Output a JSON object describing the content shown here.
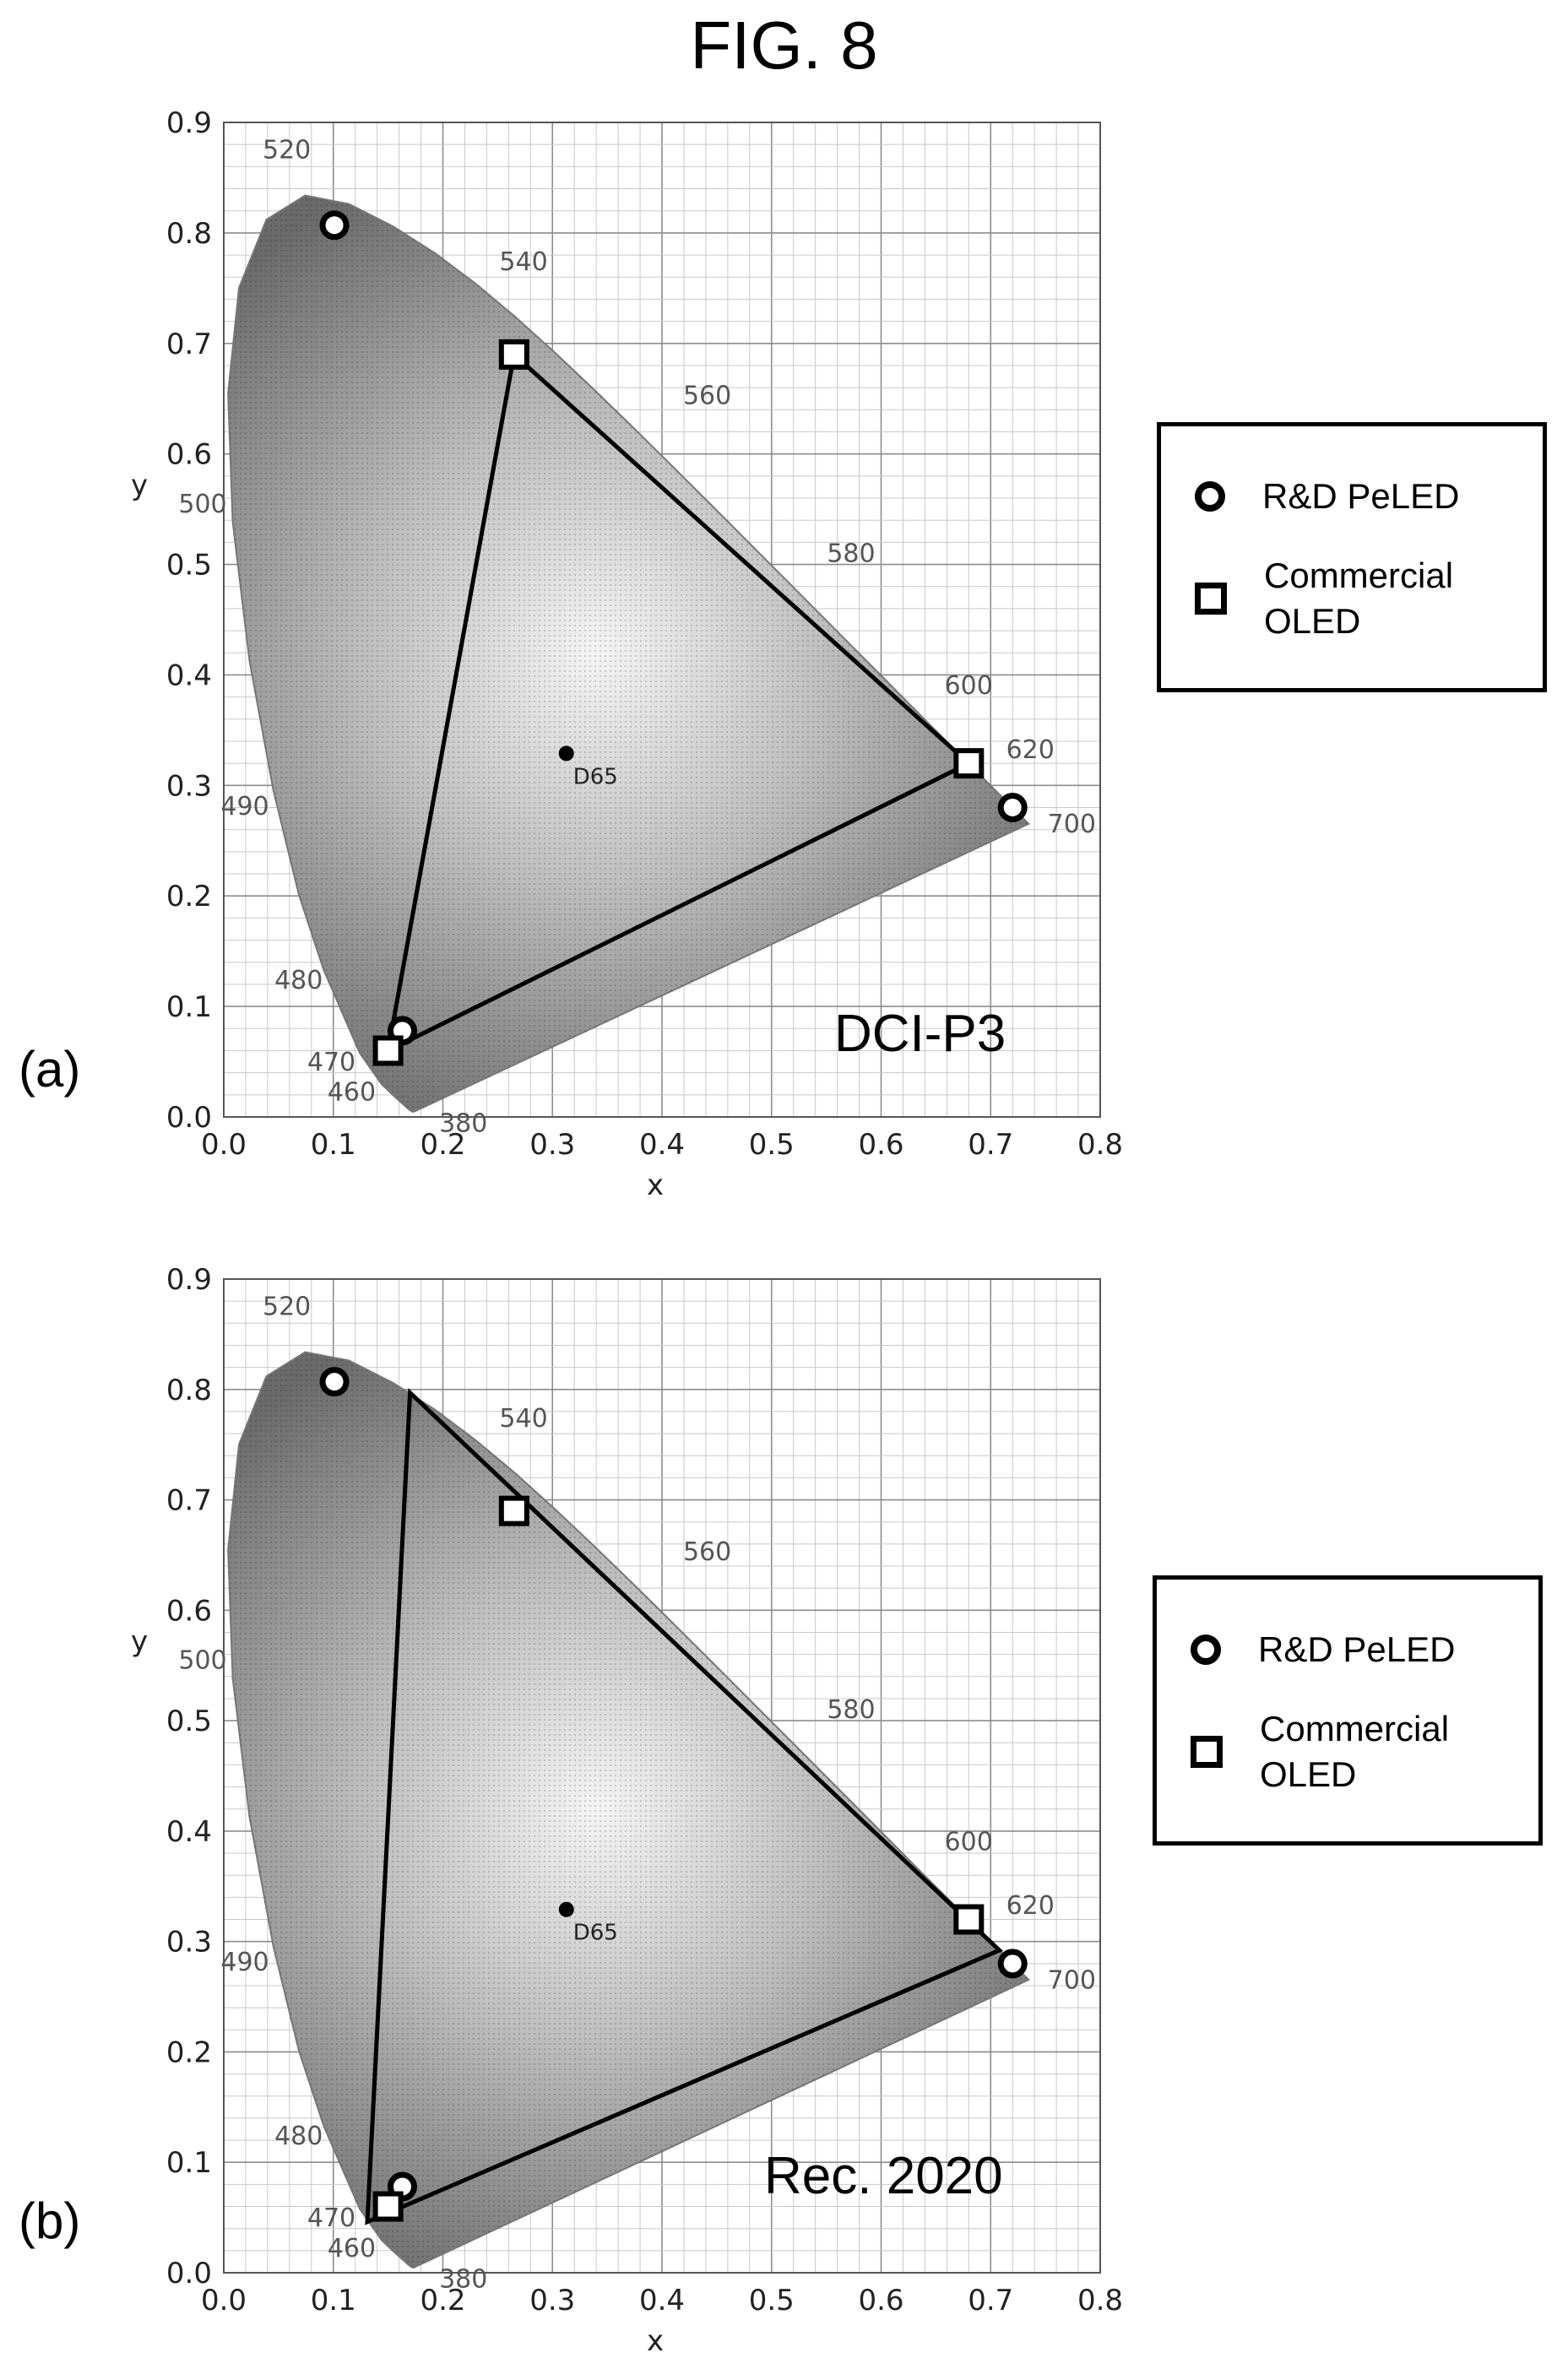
{
  "figure_title": "FIG. 8",
  "legend": {
    "circle_label": "R&D PeLED",
    "square_label_line1": "Commercial",
    "square_label_line2": "OLED"
  },
  "colors": {
    "line": "#000000",
    "grid": "#b0b0b0",
    "marker_fill": "#ffffff"
  },
  "chart_data": [
    {
      "type": "scatter",
      "panel_label": "(a)",
      "gamut_label": "DCI-P3",
      "xlabel": "x",
      "ylabel": "y",
      "xlim": [
        0.0,
        0.8
      ],
      "ylim": [
        0.0,
        0.9
      ],
      "x_ticks": [
        "0.0",
        "0.1",
        "0.2",
        "0.3",
        "0.4",
        "0.5",
        "0.6",
        "0.7",
        "0.8"
      ],
      "y_ticks": [
        "0.0",
        "0.1",
        "0.2",
        "0.3",
        "0.4",
        "0.5",
        "0.6",
        "0.7",
        "0.8",
        "0.9"
      ],
      "grid": true,
      "legend_position": "right",
      "white_point": {
        "label": "D65",
        "x": 0.3127,
        "y": 0.329
      },
      "wavelength_labels": [
        {
          "text": "520",
          "x": 0.074,
          "y": 0.834
        },
        {
          "text": "540",
          "x": 0.23,
          "y": 0.754
        },
        {
          "text": "560",
          "x": 0.373,
          "y": 0.624
        },
        {
          "text": "580",
          "x": 0.512,
          "y": 0.487
        },
        {
          "text": "600",
          "x": 0.627,
          "y": 0.372
        },
        {
          "text": "620",
          "x": 0.691,
          "y": 0.308
        },
        {
          "text": "700",
          "x": 0.735,
          "y": 0.265
        },
        {
          "text": "500",
          "x": 0.008,
          "y": 0.538
        },
        {
          "text": "490",
          "x": 0.045,
          "y": 0.295
        },
        {
          "text": "480",
          "x": 0.091,
          "y": 0.133
        },
        {
          "text": "470",
          "x": 0.124,
          "y": 0.059
        },
        {
          "text": "460",
          "x": 0.144,
          "y": 0.03
        },
        {
          "text": "380",
          "x": 0.175,
          "y": 0.005
        }
      ],
      "spectral_locus": [
        [
          0.1741,
          0.005
        ],
        [
          0.1733,
          0.0048
        ],
        [
          0.1726,
          0.0048
        ],
        [
          0.1714,
          0.0051
        ],
        [
          0.1689,
          0.0069
        ],
        [
          0.1644,
          0.0109
        ],
        [
          0.1566,
          0.0177
        ],
        [
          0.144,
          0.0297
        ],
        [
          0.1241,
          0.0578
        ],
        [
          0.0913,
          0.1327
        ],
        [
          0.0687,
          0.2007
        ],
        [
          0.0454,
          0.295
        ],
        [
          0.0235,
          0.4127
        ],
        [
          0.0082,
          0.5384
        ],
        [
          0.0039,
          0.6548
        ],
        [
          0.0139,
          0.7502
        ],
        [
          0.0389,
          0.812
        ],
        [
          0.0743,
          0.8338
        ],
        [
          0.1142,
          0.8262
        ],
        [
          0.1547,
          0.8059
        ],
        [
          0.1929,
          0.7816
        ],
        [
          0.2296,
          0.7543
        ],
        [
          0.2658,
          0.7243
        ],
        [
          0.3016,
          0.6923
        ],
        [
          0.3373,
          0.6589
        ],
        [
          0.3731,
          0.6245
        ],
        [
          0.4087,
          0.5896
        ],
        [
          0.4441,
          0.5547
        ],
        [
          0.4788,
          0.5202
        ],
        [
          0.5125,
          0.4866
        ],
        [
          0.5448,
          0.4544
        ],
        [
          0.5752,
          0.4242
        ],
        [
          0.6029,
          0.3965
        ],
        [
          0.627,
          0.3725
        ],
        [
          0.6482,
          0.3514
        ],
        [
          0.6658,
          0.334
        ],
        [
          0.6801,
          0.3197
        ],
        [
          0.6915,
          0.3083
        ],
        [
          0.7006,
          0.2993
        ],
        [
          0.7079,
          0.292
        ],
        [
          0.714,
          0.2859
        ],
        [
          0.719,
          0.2809
        ],
        [
          0.723,
          0.277
        ],
        [
          0.726,
          0.274
        ],
        [
          0.7347,
          0.2653
        ]
      ],
      "series": [
        {
          "name": "R&D PeLED",
          "marker": "circle",
          "points": [
            [
              0.101,
              0.807
            ],
            [
              0.163,
              0.078
            ],
            [
              0.72,
              0.28
            ]
          ]
        },
        {
          "name": "Commercial OLED",
          "marker": "square",
          "points": [
            [
              0.265,
              0.69
            ],
            [
              0.15,
              0.06
            ],
            [
              0.68,
              0.32
            ]
          ]
        }
      ],
      "triangle": [
        [
          0.265,
          0.69
        ],
        [
          0.68,
          0.32
        ],
        [
          0.15,
          0.06
        ]
      ]
    },
    {
      "type": "scatter",
      "panel_label": "(b)",
      "gamut_label": "Rec. 2020",
      "xlabel": "x",
      "ylabel": "y",
      "xlim": [
        0.0,
        0.8
      ],
      "ylim": [
        0.0,
        0.9
      ],
      "x_ticks": [
        "0.0",
        "0.1",
        "0.2",
        "0.3",
        "0.4",
        "0.5",
        "0.6",
        "0.7",
        "0.8"
      ],
      "y_ticks": [
        "0.0",
        "0.1",
        "0.2",
        "0.3",
        "0.4",
        "0.5",
        "0.6",
        "0.7",
        "0.8",
        "0.9"
      ],
      "grid": true,
      "legend_position": "right",
      "white_point": {
        "label": "D65",
        "x": 0.3127,
        "y": 0.329
      },
      "wavelength_labels": [
        {
          "text": "520",
          "x": 0.074,
          "y": 0.834
        },
        {
          "text": "540",
          "x": 0.23,
          "y": 0.754
        },
        {
          "text": "560",
          "x": 0.373,
          "y": 0.624
        },
        {
          "text": "580",
          "x": 0.512,
          "y": 0.487
        },
        {
          "text": "600",
          "x": 0.627,
          "y": 0.372
        },
        {
          "text": "620",
          "x": 0.691,
          "y": 0.308
        },
        {
          "text": "700",
          "x": 0.735,
          "y": 0.265
        },
        {
          "text": "500",
          "x": 0.008,
          "y": 0.538
        },
        {
          "text": "490",
          "x": 0.045,
          "y": 0.295
        },
        {
          "text": "480",
          "x": 0.091,
          "y": 0.133
        },
        {
          "text": "470",
          "x": 0.124,
          "y": 0.059
        },
        {
          "text": "460",
          "x": 0.144,
          "y": 0.03
        },
        {
          "text": "380",
          "x": 0.175,
          "y": 0.005
        }
      ],
      "spectral_locus": [
        [
          0.1741,
          0.005
        ],
        [
          0.1733,
          0.0048
        ],
        [
          0.1726,
          0.0048
        ],
        [
          0.1714,
          0.0051
        ],
        [
          0.1689,
          0.0069
        ],
        [
          0.1644,
          0.0109
        ],
        [
          0.1566,
          0.0177
        ],
        [
          0.144,
          0.0297
        ],
        [
          0.1241,
          0.0578
        ],
        [
          0.0913,
          0.1327
        ],
        [
          0.0687,
          0.2007
        ],
        [
          0.0454,
          0.295
        ],
        [
          0.0235,
          0.4127
        ],
        [
          0.0082,
          0.5384
        ],
        [
          0.0039,
          0.6548
        ],
        [
          0.0139,
          0.7502
        ],
        [
          0.0389,
          0.812
        ],
        [
          0.0743,
          0.8338
        ],
        [
          0.1142,
          0.8262
        ],
        [
          0.1547,
          0.8059
        ],
        [
          0.1929,
          0.7816
        ],
        [
          0.2296,
          0.7543
        ],
        [
          0.2658,
          0.7243
        ],
        [
          0.3016,
          0.6923
        ],
        [
          0.3373,
          0.6589
        ],
        [
          0.3731,
          0.6245
        ],
        [
          0.4087,
          0.5896
        ],
        [
          0.4441,
          0.5547
        ],
        [
          0.4788,
          0.5202
        ],
        [
          0.5125,
          0.4866
        ],
        [
          0.5448,
          0.4544
        ],
        [
          0.5752,
          0.4242
        ],
        [
          0.6029,
          0.3965
        ],
        [
          0.627,
          0.3725
        ],
        [
          0.6482,
          0.3514
        ],
        [
          0.6658,
          0.334
        ],
        [
          0.6801,
          0.3197
        ],
        [
          0.6915,
          0.3083
        ],
        [
          0.7006,
          0.2993
        ],
        [
          0.7079,
          0.292
        ],
        [
          0.714,
          0.2859
        ],
        [
          0.719,
          0.2809
        ],
        [
          0.723,
          0.277
        ],
        [
          0.726,
          0.274
        ],
        [
          0.7347,
          0.2653
        ]
      ],
      "series": [
        {
          "name": "R&D PeLED",
          "marker": "circle",
          "points": [
            [
              0.101,
              0.807
            ],
            [
              0.163,
              0.078
            ],
            [
              0.72,
              0.28
            ]
          ]
        },
        {
          "name": "Commercial OLED",
          "marker": "square",
          "points": [
            [
              0.265,
              0.69
            ],
            [
              0.15,
              0.06
            ],
            [
              0.68,
              0.32
            ]
          ]
        }
      ],
      "triangle": [
        [
          0.17,
          0.797
        ],
        [
          0.708,
          0.292
        ],
        [
          0.131,
          0.046
        ]
      ]
    }
  ]
}
